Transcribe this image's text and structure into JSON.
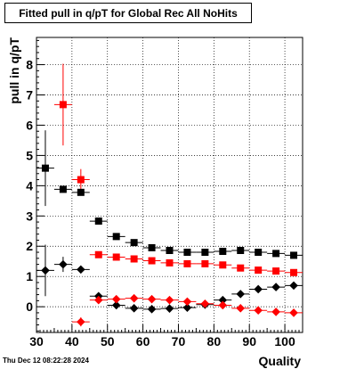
{
  "title": "Fitted pull in q/pT for Global Rec All NoHits",
  "timestamp": "Thu Dec 12 08:22:28 2024",
  "chart_data": {
    "type": "scatter",
    "xlabel": "Quality",
    "ylabel": "pull in q/pT",
    "xlim": [
      30,
      105
    ],
    "ylim": [
      -0.85,
      8.9
    ],
    "xticks": [
      30,
      40,
      50,
      60,
      70,
      80,
      90,
      100
    ],
    "yticks": [
      0,
      1,
      2,
      3,
      4,
      5,
      6,
      7,
      8
    ],
    "grid": true,
    "legend": "none",
    "series": [
      {
        "marker": "square",
        "color": "#000000",
        "points": [
          {
            "x": 32.5,
            "y": 4.58,
            "yerr": 1.25
          },
          {
            "x": 37.5,
            "y": 3.88
          },
          {
            "x": 42.5,
            "y": 3.78
          },
          {
            "x": 47.5,
            "y": 2.83
          },
          {
            "x": 52.5,
            "y": 2.32
          },
          {
            "x": 57.5,
            "y": 2.12
          },
          {
            "x": 62.5,
            "y": 1.95
          },
          {
            "x": 67.5,
            "y": 1.86
          },
          {
            "x": 72.5,
            "y": 1.8
          },
          {
            "x": 77.5,
            "y": 1.8
          },
          {
            "x": 82.5,
            "y": 1.83
          },
          {
            "x": 87.5,
            "y": 1.86
          },
          {
            "x": 92.5,
            "y": 1.8
          },
          {
            "x": 97.5,
            "y": 1.76
          },
          {
            "x": 102.5,
            "y": 1.7
          }
        ]
      },
      {
        "marker": "square",
        "color": "#ff0000",
        "points": [
          {
            "x": 37.5,
            "y": 6.68,
            "yerr": 1.35
          },
          {
            "x": 42.5,
            "y": 4.2,
            "yerr": 0.35
          },
          {
            "x": 47.5,
            "y": 1.72
          },
          {
            "x": 52.5,
            "y": 1.64
          },
          {
            "x": 57.5,
            "y": 1.58
          },
          {
            "x": 62.5,
            "y": 1.52
          },
          {
            "x": 67.5,
            "y": 1.45
          },
          {
            "x": 72.5,
            "y": 1.42
          },
          {
            "x": 77.5,
            "y": 1.42
          },
          {
            "x": 82.5,
            "y": 1.38
          },
          {
            "x": 87.5,
            "y": 1.28
          },
          {
            "x": 92.5,
            "y": 1.21
          },
          {
            "x": 97.5,
            "y": 1.18
          },
          {
            "x": 102.5,
            "y": 1.13
          }
        ]
      },
      {
        "marker": "diamond",
        "color": "#000000",
        "points": [
          {
            "x": 32.5,
            "y": 1.2,
            "yerr": 0.85
          },
          {
            "x": 37.5,
            "y": 1.4,
            "yerr": 0.25
          },
          {
            "x": 42.5,
            "y": 1.23
          },
          {
            "x": 47.5,
            "y": 0.35
          },
          {
            "x": 52.5,
            "y": 0.05
          },
          {
            "x": 57.5,
            "y": -0.05
          },
          {
            "x": 62.5,
            "y": -0.08
          },
          {
            "x": 67.5,
            "y": -0.06
          },
          {
            "x": 72.5,
            "y": -0.03
          },
          {
            "x": 77.5,
            "y": 0.07
          },
          {
            "x": 82.5,
            "y": 0.22
          },
          {
            "x": 87.5,
            "y": 0.42
          },
          {
            "x": 92.5,
            "y": 0.58
          },
          {
            "x": 97.5,
            "y": 0.65
          },
          {
            "x": 102.5,
            "y": 0.7
          }
        ]
      },
      {
        "marker": "diamond",
        "color": "#ff0000",
        "points": [
          {
            "x": 42.5,
            "y": -0.5,
            "yerr": 0.15
          },
          {
            "x": 47.5,
            "y": 0.22
          },
          {
            "x": 52.5,
            "y": 0.25
          },
          {
            "x": 57.5,
            "y": 0.28
          },
          {
            "x": 62.5,
            "y": 0.25
          },
          {
            "x": 67.5,
            "y": 0.22
          },
          {
            "x": 72.5,
            "y": 0.17
          },
          {
            "x": 77.5,
            "y": 0.1
          },
          {
            "x": 82.5,
            "y": 0.05
          },
          {
            "x": 87.5,
            "y": -0.05
          },
          {
            "x": 92.5,
            "y": -0.12
          },
          {
            "x": 97.5,
            "y": -0.17
          },
          {
            "x": 102.5,
            "y": -0.2
          }
        ]
      }
    ]
  }
}
